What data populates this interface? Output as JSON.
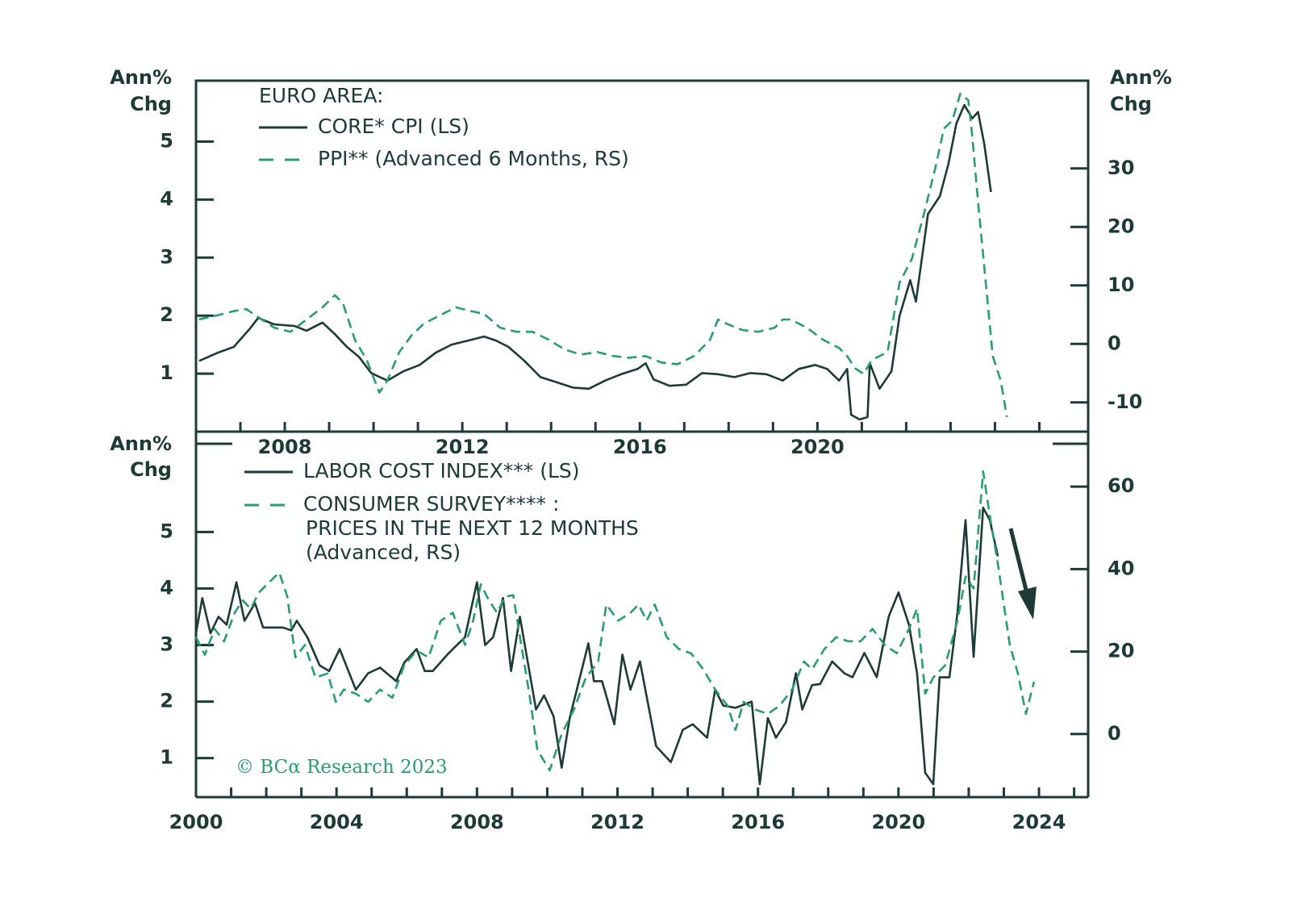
{
  "chart_data": [
    {
      "type": "line",
      "legend_title": "EURO AREA:",
      "y_label": [
        "Ann%",
        "Chg"
      ],
      "y2_label": [
        "Ann%",
        "Chg"
      ],
      "xlim": [
        2006,
        2026.1
      ],
      "xticks": [
        2008,
        2012,
        2016,
        2020
      ],
      "minor_xticks": [
        2007,
        2008,
        2009,
        2010,
        2011,
        2012,
        2013,
        2014,
        2015,
        2016,
        2017,
        2018,
        2019,
        2020,
        2021,
        2022,
        2023,
        2024,
        2025
      ],
      "ylim": [
        0,
        6.05
      ],
      "yticks": [
        1,
        2,
        3,
        4,
        5
      ],
      "y2lim": [
        -15,
        45
      ],
      "y2ticks": [
        -10,
        0,
        10,
        20,
        30
      ],
      "series": [
        {
          "name": "CORE* CPI (LS)",
          "color": "#1d3a35",
          "dashed": false,
          "axis": "y",
          "x": [
            2006.07,
            2006.49,
            2006.85,
            2007.22,
            2007.4,
            2007.76,
            2008.22,
            2008.49,
            2008.85,
            2009.13,
            2009.4,
            2009.67,
            2009.95,
            2010.31,
            2010.67,
            2011.04,
            2011.4,
            2011.76,
            2012.13,
            2012.49,
            2012.76,
            2013.04,
            2013.4,
            2013.76,
            2014.13,
            2014.49,
            2014.85,
            2015.22,
            2015.58,
            2015.95,
            2016.13,
            2016.31,
            2016.67,
            2017.04,
            2017.4,
            2017.76,
            2018.13,
            2018.49,
            2018.85,
            2019.22,
            2019.58,
            2019.95,
            2020.22,
            2020.49,
            2020.67,
            2020.76,
            2020.95,
            2021.13,
            2021.18,
            2021.4,
            2021.67,
            2021.85,
            2022.09,
            2022.22,
            2022.49,
            2022.76,
            2022.95,
            2023.13,
            2023.31,
            2023.49,
            2023.62,
            2023.76,
            2023.91
          ],
          "values": [
            1.22,
            1.36,
            1.46,
            1.78,
            1.96,
            1.85,
            1.82,
            1.74,
            1.88,
            1.68,
            1.46,
            1.29,
            1.01,
            0.88,
            1.04,
            1.15,
            1.36,
            1.5,
            1.57,
            1.64,
            1.57,
            1.46,
            1.22,
            0.94,
            0.85,
            0.76,
            0.74,
            0.88,
            0.99,
            1.08,
            1.18,
            0.9,
            0.79,
            0.81,
            1.01,
            0.99,
            0.94,
            1.01,
            0.99,
            0.88,
            1.08,
            1.15,
            1.08,
            0.88,
            1.08,
            0.29,
            0.21,
            0.25,
            1.18,
            0.74,
            1.04,
            1.99,
            2.61,
            2.24,
            3.75,
            4.06,
            4.61,
            5.31,
            5.63,
            5.4,
            5.51,
            4.96,
            4.13
          ]
        },
        {
          "name": "PPI** (Advanced 6 Months, RS)",
          "color": "#2a9d6f",
          "dashed": true,
          "axis": "y2",
          "x": [
            2006.07,
            2006.49,
            2006.85,
            2007.13,
            2007.4,
            2007.76,
            2008.13,
            2008.49,
            2008.85,
            2009.13,
            2009.31,
            2009.58,
            2009.85,
            2010.13,
            2010.31,
            2010.58,
            2010.85,
            2011.13,
            2011.49,
            2011.85,
            2012.22,
            2012.49,
            2012.85,
            2013.22,
            2013.58,
            2013.95,
            2014.31,
            2014.67,
            2015.04,
            2015.4,
            2015.76,
            2016.13,
            2016.49,
            2016.85,
            2017.22,
            2017.58,
            2017.76,
            2017.95,
            2018.31,
            2018.67,
            2019.04,
            2019.22,
            2019.4,
            2019.76,
            2020.13,
            2020.49,
            2020.67,
            2020.85,
            2021.04,
            2021.22,
            2021.58,
            2021.85,
            2022.13,
            2022.4,
            2022.67,
            2022.85,
            2023.04,
            2023.22,
            2023.4,
            2023.49,
            2023.62,
            2023.76,
            2023.95,
            2024.13,
            2024.27
          ],
          "values": [
            4.2,
            4.9,
            5.6,
            5.97,
            4.58,
            2.78,
            2.08,
            4.17,
            6.25,
            8.33,
            6.94,
            0.69,
            -2.78,
            -8.33,
            -6.25,
            -1.39,
            1.39,
            3.47,
            4.86,
            6.25,
            5.56,
            5.14,
            2.78,
            2.08,
            2.08,
            0.69,
            -0.97,
            -1.81,
            -1.39,
            -2.08,
            -2.36,
            -2.08,
            -3.19,
            -3.47,
            -2.08,
            0.69,
            4.17,
            3.47,
            2.36,
            2.08,
            2.78,
            4.17,
            4.17,
            2.78,
            0.69,
            -0.69,
            -2.08,
            -4.17,
            -5.14,
            -2.78,
            -1.39,
            10.42,
            14.58,
            22.22,
            30.56,
            36.81,
            38.19,
            42.78,
            41.67,
            35.42,
            24.31,
            13.19,
            -2.08,
            -6.25,
            -12.5
          ]
        }
      ]
    },
    {
      "type": "line",
      "y_label": [
        "Ann%",
        "Chg"
      ],
      "annotation": "© BCα Research 2023",
      "xlim": [
        2000,
        2025.4
      ],
      "xticks": [
        2000,
        2004,
        2008,
        2012,
        2016,
        2020,
        2024
      ],
      "minor_xticks": [
        2001,
        2002,
        2003,
        2004,
        2005,
        2006,
        2007,
        2008,
        2009,
        2010,
        2011,
        2012,
        2013,
        2014,
        2015,
        2016,
        2017,
        2018,
        2019,
        2020,
        2021,
        2022,
        2023,
        2024,
        2025
      ],
      "ylim": [
        0.31,
        6.56
      ],
      "yticks": [
        1,
        2,
        3,
        4,
        5
      ],
      "y2lim": [
        -15.3,
        70.4
      ],
      "y2ticks": [
        0,
        20,
        40,
        60
      ],
      "series": [
        {
          "name": "LABOR COST INDEX*** (LS)",
          "color": "#1d3a35",
          "dashed": false,
          "axis": "y",
          "x": [
            2000.0,
            2000.18,
            2000.41,
            2000.64,
            2000.87,
            2001.15,
            2001.38,
            2001.68,
            2001.91,
            2002.48,
            2002.71,
            2002.87,
            2003.17,
            2003.52,
            2003.79,
            2004.09,
            2004.55,
            2004.9,
            2005.24,
            2005.7,
            2005.93,
            2006.28,
            2006.51,
            2006.74,
            2007.2,
            2007.66,
            2008.0,
            2008.23,
            2008.46,
            2008.74,
            2008.97,
            2009.22,
            2009.68,
            2009.91,
            2010.18,
            2010.41,
            2010.64,
            2011.17,
            2011.33,
            2011.56,
            2011.91,
            2012.14,
            2012.37,
            2012.64,
            2013.1,
            2013.52,
            2013.86,
            2014.14,
            2014.55,
            2014.78,
            2015.01,
            2015.36,
            2015.82,
            2016.05,
            2016.28,
            2016.51,
            2016.8,
            2017.08,
            2017.26,
            2017.54,
            2017.77,
            2018.11,
            2018.46,
            2018.69,
            2019.03,
            2019.38,
            2019.72,
            2020.0,
            2020.3,
            2020.53,
            2020.76,
            2020.99,
            2021.17,
            2021.45,
            2021.68,
            2021.91,
            2022.14,
            2022.41,
            2022.6,
            2022.83
          ],
          "values": [
            3.21,
            3.83,
            3.21,
            3.5,
            3.36,
            4.11,
            3.43,
            3.74,
            3.31,
            3.31,
            3.26,
            3.43,
            3.14,
            2.64,
            2.54,
            2.93,
            2.21,
            2.5,
            2.6,
            2.36,
            2.69,
            2.93,
            2.54,
            2.54,
            2.86,
            3.14,
            4.11,
            3.0,
            3.14,
            3.83,
            2.54,
            3.5,
            1.86,
            2.11,
            1.74,
            0.83,
            1.71,
            3.03,
            2.36,
            2.36,
            1.6,
            2.83,
            2.21,
            2.71,
            1.21,
            0.93,
            1.5,
            1.6,
            1.36,
            2.21,
            1.93,
            1.89,
            2.0,
            0.54,
            1.71,
            1.36,
            1.64,
            2.5,
            1.86,
            2.29,
            2.31,
            2.71,
            2.5,
            2.43,
            2.86,
            2.43,
            3.5,
            3.93,
            3.36,
            2.5,
            0.74,
            0.54,
            2.43,
            2.43,
            3.57,
            5.21,
            2.79,
            5.43,
            5.21,
            4.57
          ]
        },
        {
          "name": [
            "CONSUMER SURVEY**** :",
            "PRICES IN THE NEXT 12 MONTHS",
            "(Advanced, RS)"
          ],
          "color": "#2a9d6f",
          "dashed": true,
          "axis": "y2",
          "x": [
            2000.0,
            2000.25,
            2000.53,
            2000.8,
            2001.1,
            2001.33,
            2001.56,
            2001.79,
            2002.02,
            2002.37,
            2002.6,
            2002.83,
            2003.1,
            2003.4,
            2003.75,
            2003.98,
            2004.21,
            2004.55,
            2004.9,
            2005.24,
            2005.59,
            2005.93,
            2006.28,
            2006.62,
            2006.97,
            2007.31,
            2007.66,
            2007.89,
            2008.11,
            2008.34,
            2008.57,
            2008.8,
            2009.03,
            2009.26,
            2009.49,
            2009.72,
            2010.07,
            2010.41,
            2010.76,
            2011.1,
            2011.45,
            2011.68,
            2012.02,
            2012.37,
            2012.6,
            2012.83,
            2013.06,
            2013.4,
            2013.75,
            2014.09,
            2014.44,
            2014.78,
            2015.13,
            2015.36,
            2015.59,
            2015.93,
            2016.28,
            2016.62,
            2016.97,
            2017.31,
            2017.54,
            2017.89,
            2018.23,
            2018.57,
            2018.92,
            2019.26,
            2019.61,
            2019.95,
            2020.3,
            2020.53,
            2020.76,
            2020.99,
            2021.33,
            2021.68,
            2021.91,
            2022.14,
            2022.41,
            2022.6,
            2022.83,
            2023.17,
            2023.4,
            2023.63,
            2023.86
          ],
          "values": [
            23.5,
            19.2,
            25.5,
            22.5,
            29.4,
            32.4,
            30.4,
            34.3,
            36.3,
            39.2,
            33.3,
            18.6,
            21.6,
            13.7,
            14.7,
            7.8,
            10.8,
            9.8,
            7.8,
            10.8,
            8.8,
            16.7,
            20.2,
            18.6,
            27.5,
            29.4,
            21.6,
            27.5,
            36.3,
            32.4,
            29.4,
            33.3,
            33.7,
            21.6,
            9.8,
            -3.9,
            -8.8,
            0.0,
            5.9,
            13.7,
            17.6,
            31.4,
            27.5,
            29.4,
            31.4,
            27.5,
            31.4,
            23.5,
            20.6,
            19.6,
            15.7,
            10.8,
            6.9,
            1.0,
            7.8,
            5.9,
            4.9,
            6.9,
            10.8,
            17.6,
            15.7,
            20.6,
            23.5,
            22.5,
            22.5,
            25.5,
            21.6,
            19.6,
            25.5,
            30.4,
            9.8,
            13.7,
            16.7,
            27.5,
            38.2,
            35.3,
            63.7,
            52.9,
            41.2,
            21.6,
            14.7,
            4.9,
            12.7
          ]
        }
      ]
    }
  ]
}
